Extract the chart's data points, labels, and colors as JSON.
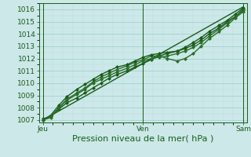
{
  "title": "",
  "xlabel": "Pression niveau de la mer( hPa )",
  "background_color": "#cce8e8",
  "grid_color_major": "#99cccc",
  "grid_color_minor": "#bbdddd",
  "line_color_dark": "#1a5c1a",
  "tick_label_color": "#1a5c1a",
  "x_tick_labels": [
    "Jeu",
    "Ven",
    "Sam"
  ],
  "x_tick_positions": [
    0.0,
    0.5,
    1.0
  ],
  "ylim": [
    1006.8,
    1016.5
  ],
  "yticks": [
    1007,
    1008,
    1009,
    1010,
    1011,
    1012,
    1013,
    1014,
    1015,
    1016
  ],
  "xlabel_fontsize": 8,
  "tick_fontsize": 6.5,
  "series": [
    {
      "x": [
        0.0,
        0.04,
        0.08,
        0.12,
        0.17,
        0.21,
        0.25,
        0.29,
        0.33,
        0.37,
        0.42,
        0.46,
        0.5,
        0.54,
        0.58,
        0.62,
        0.67,
        0.71,
        0.75,
        0.79,
        0.83,
        0.88,
        0.92,
        0.96,
        1.0
      ],
      "y": [
        1007.1,
        1007.3,
        1007.9,
        1008.4,
        1008.8,
        1009.2,
        1009.6,
        1010.0,
        1010.4,
        1010.7,
        1011.0,
        1011.3,
        1011.6,
        1011.9,
        1012.2,
        1012.4,
        1012.6,
        1012.9,
        1013.3,
        1013.7,
        1014.2,
        1014.7,
        1015.1,
        1015.6,
        1016.1
      ],
      "color": "#1a5c1a",
      "lw": 1.0,
      "marker": "D",
      "ms": 2.0
    },
    {
      "x": [
        0.0,
        0.04,
        0.08,
        0.12,
        0.17,
        0.21,
        0.25,
        0.29,
        0.33,
        0.37,
        0.42,
        0.46,
        0.5,
        0.54,
        0.58,
        0.62,
        0.67,
        0.71,
        0.75,
        0.79,
        0.83,
        0.88,
        0.92,
        0.96,
        1.0
      ],
      "y": [
        1007.0,
        1007.2,
        1008.0,
        1008.7,
        1009.2,
        1009.6,
        1010.1,
        1010.5,
        1010.8,
        1011.1,
        1011.4,
        1011.7,
        1011.9,
        1012.2,
        1012.2,
        1012.0,
        1011.8,
        1012.0,
        1012.4,
        1013.0,
        1013.6,
        1014.2,
        1014.7,
        1015.3,
        1015.8
      ],
      "color": "#2a6e2a",
      "lw": 1.0,
      "marker": "D",
      "ms": 2.0
    },
    {
      "x": [
        0.0,
        0.04,
        0.08,
        0.12,
        0.17,
        0.21,
        0.25,
        0.29,
        0.33,
        0.37,
        0.42,
        0.46,
        0.5,
        0.54,
        0.58,
        0.62,
        0.67,
        0.71,
        0.75,
        0.79,
        0.83,
        0.88,
        0.92,
        0.96,
        1.0
      ],
      "y": [
        1007.0,
        1007.4,
        1008.2,
        1008.9,
        1009.5,
        1009.9,
        1010.3,
        1010.7,
        1011.0,
        1011.3,
        1011.5,
        1011.8,
        1012.1,
        1012.3,
        1012.4,
        1012.5,
        1012.6,
        1012.8,
        1013.1,
        1013.5,
        1014.0,
        1014.5,
        1015.0,
        1015.4,
        1016.0
      ],
      "color": "#1a5c1a",
      "lw": 1.0,
      "marker": "D",
      "ms": 2.0
    },
    {
      "x": [
        0.0,
        0.04,
        0.08,
        0.12,
        0.17,
        0.21,
        0.25,
        0.29,
        0.33,
        0.37,
        0.42,
        0.46,
        0.5,
        0.54,
        0.58,
        0.62,
        0.67,
        0.71,
        0.75,
        0.79,
        0.83,
        0.88,
        0.92,
        0.96,
        1.0
      ],
      "y": [
        1007.0,
        1007.3,
        1008.0,
        1008.6,
        1009.1,
        1009.5,
        1010.0,
        1010.3,
        1010.6,
        1010.9,
        1011.2,
        1011.5,
        1011.8,
        1012.0,
        1012.1,
        1012.2,
        1012.4,
        1012.6,
        1012.9,
        1013.3,
        1013.8,
        1014.4,
        1014.9,
        1015.4,
        1015.9
      ],
      "color": "#2a6e2a",
      "lw": 1.0,
      "marker": "D",
      "ms": 2.0
    },
    {
      "x": [
        0.0,
        1.0
      ],
      "y": [
        1007.0,
        1016.2
      ],
      "color": "#1a5c1a",
      "lw": 1.0,
      "marker": null,
      "ms": 0
    }
  ]
}
